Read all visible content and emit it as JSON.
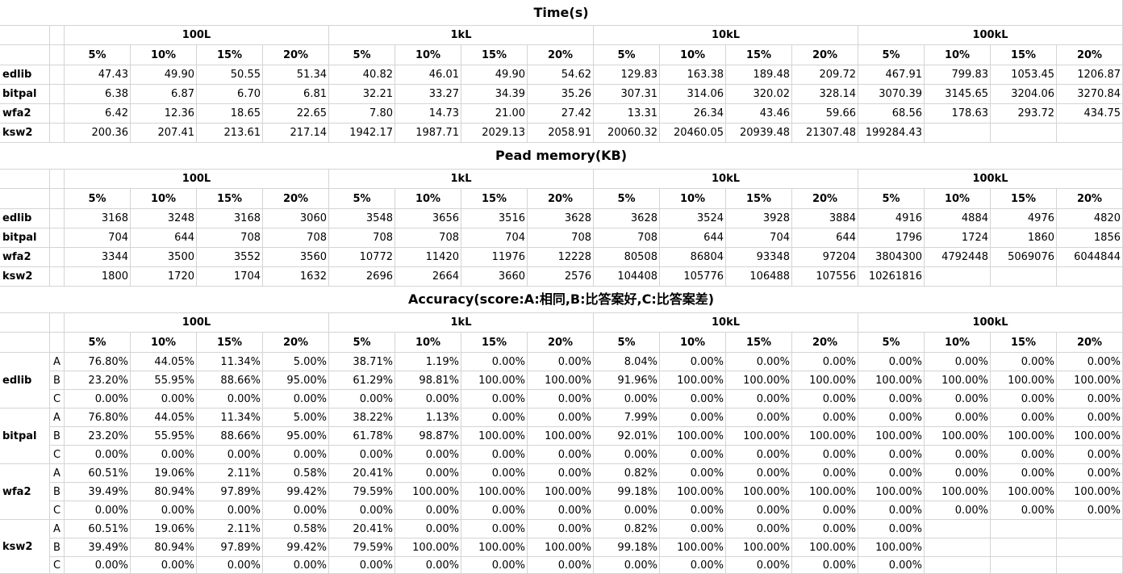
{
  "time": {
    "title": "Time(s)",
    "groups": [
      "100L",
      "1kL",
      "10kL",
      "100kL"
    ],
    "subheaders": [
      "5%",
      "10%",
      "15%",
      "20%",
      "5%",
      "10%",
      "15%",
      "20%",
      "5%",
      "10%",
      "15%",
      "20%",
      "5%",
      "10%",
      "15%",
      "20%"
    ],
    "rows": [
      {
        "method": "edlib",
        "values": [
          "47.43",
          "49.90",
          "50.55",
          "51.34",
          "40.82",
          "46.01",
          "49.90",
          "54.62",
          "129.83",
          "163.38",
          "189.48",
          "209.72",
          "467.91",
          "799.83",
          "1053.45",
          "1206.87"
        ]
      },
      {
        "method": "bitpal",
        "values": [
          "6.38",
          "6.87",
          "6.70",
          "6.81",
          "32.21",
          "33.27",
          "34.39",
          "35.26",
          "307.31",
          "314.06",
          "320.02",
          "328.14",
          "3070.39",
          "3145.65",
          "3204.06",
          "3270.84"
        ]
      },
      {
        "method": "wfa2",
        "values": [
          "6.42",
          "12.36",
          "18.65",
          "22.65",
          "7.80",
          "14.73",
          "21.00",
          "27.42",
          "13.31",
          "26.34",
          "43.46",
          "59.66",
          "68.56",
          "178.63",
          "293.72",
          "434.75"
        ]
      },
      {
        "method": "ksw2",
        "values": [
          "200.36",
          "207.41",
          "213.61",
          "217.14",
          "1942.17",
          "1987.71",
          "2029.13",
          "2058.91",
          "20060.32",
          "20460.05",
          "20939.48",
          "21307.48",
          "199284.43",
          "",
          "",
          ""
        ]
      }
    ]
  },
  "memory": {
    "title": "Pead memory(KB)",
    "groups": [
      "100L",
      "1kL",
      "10kL",
      "100kL"
    ],
    "subheaders": [
      "5%",
      "10%",
      "15%",
      "20%",
      "5%",
      "10%",
      "15%",
      "20%",
      "5%",
      "10%",
      "15%",
      "20%",
      "5%",
      "10%",
      "15%",
      "20%"
    ],
    "rows": [
      {
        "method": "edlib",
        "values": [
          "3168",
          "3248",
          "3168",
          "3060",
          "3548",
          "3656",
          "3516",
          "3628",
          "3628",
          "3524",
          "3928",
          "3884",
          "4916",
          "4884",
          "4976",
          "4820"
        ]
      },
      {
        "method": "bitpal",
        "values": [
          "704",
          "644",
          "708",
          "708",
          "708",
          "708",
          "704",
          "708",
          "708",
          "644",
          "704",
          "644",
          "1796",
          "1724",
          "1860",
          "1856"
        ]
      },
      {
        "method": "wfa2",
        "values": [
          "3344",
          "3500",
          "3552",
          "3560",
          "10772",
          "11420",
          "11976",
          "12228",
          "80508",
          "86804",
          "93348",
          "97204",
          "3804300",
          "4792448",
          "5069076",
          "6044844"
        ]
      },
      {
        "method": "ksw2",
        "values": [
          "1800",
          "1720",
          "1704",
          "1632",
          "2696",
          "2664",
          "3660",
          "2576",
          "104408",
          "105776",
          "106488",
          "107556",
          "10261816",
          "",
          "",
          ""
        ]
      }
    ]
  },
  "accuracy": {
    "title": "Accuracy(score:A:相同,B:比答案好,C:比答案差)",
    "groups": [
      "100L",
      "1kL",
      "10kL",
      "100kL"
    ],
    "subheaders": [
      "5%",
      "10%",
      "15%",
      "20%",
      "5%",
      "10%",
      "15%",
      "20%",
      "5%",
      "10%",
      "15%",
      "20%",
      "5%",
      "10%",
      "15%",
      "20%"
    ],
    "methods": [
      {
        "method": "edlib",
        "rows": [
          {
            "score": "A",
            "values": [
              "76.80%",
              "44.05%",
              "11.34%",
              "5.00%",
              "38.71%",
              "1.19%",
              "0.00%",
              "0.00%",
              "8.04%",
              "0.00%",
              "0.00%",
              "0.00%",
              "0.00%",
              "0.00%",
              "0.00%",
              "0.00%"
            ]
          },
          {
            "score": "B",
            "values": [
              "23.20%",
              "55.95%",
              "88.66%",
              "95.00%",
              "61.29%",
              "98.81%",
              "100.00%",
              "100.00%",
              "91.96%",
              "100.00%",
              "100.00%",
              "100.00%",
              "100.00%",
              "100.00%",
              "100.00%",
              "100.00%"
            ]
          },
          {
            "score": "C",
            "values": [
              "0.00%",
              "0.00%",
              "0.00%",
              "0.00%",
              "0.00%",
              "0.00%",
              "0.00%",
              "0.00%",
              "0.00%",
              "0.00%",
              "0.00%",
              "0.00%",
              "0.00%",
              "0.00%",
              "0.00%",
              "0.00%"
            ]
          }
        ]
      },
      {
        "method": "bitpal",
        "rows": [
          {
            "score": "A",
            "values": [
              "76.80%",
              "44.05%",
              "11.34%",
              "5.00%",
              "38.22%",
              "1.13%",
              "0.00%",
              "0.00%",
              "7.99%",
              "0.00%",
              "0.00%",
              "0.00%",
              "0.00%",
              "0.00%",
              "0.00%",
              "0.00%"
            ]
          },
          {
            "score": "B",
            "values": [
              "23.20%",
              "55.95%",
              "88.66%",
              "95.00%",
              "61.78%",
              "98.87%",
              "100.00%",
              "100.00%",
              "92.01%",
              "100.00%",
              "100.00%",
              "100.00%",
              "100.00%",
              "100.00%",
              "100.00%",
              "100.00%"
            ]
          },
          {
            "score": "C",
            "values": [
              "0.00%",
              "0.00%",
              "0.00%",
              "0.00%",
              "0.00%",
              "0.00%",
              "0.00%",
              "0.00%",
              "0.00%",
              "0.00%",
              "0.00%",
              "0.00%",
              "0.00%",
              "0.00%",
              "0.00%",
              "0.00%"
            ]
          }
        ]
      },
      {
        "method": "wfa2",
        "rows": [
          {
            "score": "A",
            "values": [
              "60.51%",
              "19.06%",
              "2.11%",
              "0.58%",
              "20.41%",
              "0.00%",
              "0.00%",
              "0.00%",
              "0.82%",
              "0.00%",
              "0.00%",
              "0.00%",
              "0.00%",
              "0.00%",
              "0.00%",
              "0.00%"
            ]
          },
          {
            "score": "B",
            "values": [
              "39.49%",
              "80.94%",
              "97.89%",
              "99.42%",
              "79.59%",
              "100.00%",
              "100.00%",
              "100.00%",
              "99.18%",
              "100.00%",
              "100.00%",
              "100.00%",
              "100.00%",
              "100.00%",
              "100.00%",
              "100.00%"
            ]
          },
          {
            "score": "C",
            "values": [
              "0.00%",
              "0.00%",
              "0.00%",
              "0.00%",
              "0.00%",
              "0.00%",
              "0.00%",
              "0.00%",
              "0.00%",
              "0.00%",
              "0.00%",
              "0.00%",
              "0.00%",
              "0.00%",
              "0.00%",
              "0.00%"
            ]
          }
        ]
      },
      {
        "method": "ksw2",
        "rows": [
          {
            "score": "A",
            "values": [
              "60.51%",
              "19.06%",
              "2.11%",
              "0.58%",
              "20.41%",
              "0.00%",
              "0.00%",
              "0.00%",
              "0.82%",
              "0.00%",
              "0.00%",
              "0.00%",
              "0.00%",
              "",
              "",
              ""
            ]
          },
          {
            "score": "B",
            "values": [
              "39.49%",
              "80.94%",
              "97.89%",
              "99.42%",
              "79.59%",
              "100.00%",
              "100.00%",
              "100.00%",
              "99.18%",
              "100.00%",
              "100.00%",
              "100.00%",
              "100.00%",
              "",
              "",
              ""
            ]
          },
          {
            "score": "C",
            "values": [
              "0.00%",
              "0.00%",
              "0.00%",
              "0.00%",
              "0.00%",
              "0.00%",
              "0.00%",
              "0.00%",
              "0.00%",
              "0.00%",
              "0.00%",
              "0.00%",
              "0.00%",
              "",
              "",
              ""
            ]
          }
        ]
      }
    ]
  }
}
